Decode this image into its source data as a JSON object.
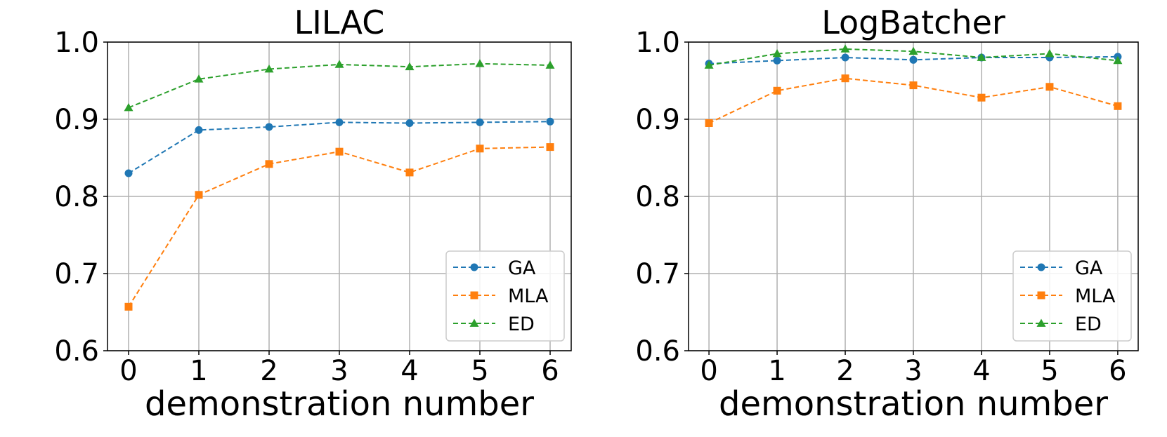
{
  "chart_data": [
    {
      "type": "line",
      "title": "LILAC",
      "xlabel": "demonstration number",
      "ylabel": "",
      "x": [
        0,
        1,
        2,
        3,
        4,
        5,
        6
      ],
      "ylim": [
        0.6,
        1.0
      ],
      "yticks": [
        "0.6",
        "0.7",
        "0.8",
        "0.9",
        "1.0"
      ],
      "xticks": [
        "0",
        "1",
        "2",
        "3",
        "4",
        "5",
        "6"
      ],
      "grid": true,
      "legend_position": "lower-right",
      "series": [
        {
          "name": "GA",
          "color": "#1f77b4",
          "marker": "circle",
          "values": [
            0.83,
            0.886,
            0.89,
            0.896,
            0.895,
            0.896,
            0.897
          ]
        },
        {
          "name": "MLA",
          "color": "#ff7f0e",
          "marker": "square",
          "values": [
            0.657,
            0.802,
            0.842,
            0.858,
            0.831,
            0.862,
            0.864
          ]
        },
        {
          "name": "ED",
          "color": "#2ca02c",
          "marker": "triangle",
          "values": [
            0.915,
            0.952,
            0.965,
            0.971,
            0.968,
            0.972,
            0.97
          ]
        }
      ]
    },
    {
      "type": "line",
      "title": "LogBatcher",
      "xlabel": "demonstration number",
      "ylabel": "",
      "x": [
        0,
        1,
        2,
        3,
        4,
        5,
        6
      ],
      "ylim": [
        0.6,
        1.0
      ],
      "yticks": [
        "0.6",
        "0.7",
        "0.8",
        "0.9",
        "1.0"
      ],
      "xticks": [
        "0",
        "1",
        "2",
        "3",
        "4",
        "5",
        "6"
      ],
      "grid": true,
      "legend_position": "lower-right",
      "series": [
        {
          "name": "GA",
          "color": "#1f77b4",
          "marker": "circle",
          "values": [
            0.972,
            0.976,
            0.98,
            0.977,
            0.98,
            0.98,
            0.981
          ]
        },
        {
          "name": "MLA",
          "color": "#ff7f0e",
          "marker": "square",
          "values": [
            0.895,
            0.937,
            0.953,
            0.944,
            0.928,
            0.942,
            0.917
          ]
        },
        {
          "name": "ED",
          "color": "#2ca02c",
          "marker": "triangle",
          "values": [
            0.97,
            0.985,
            0.991,
            0.988,
            0.98,
            0.985,
            0.976
          ]
        }
      ]
    }
  ]
}
